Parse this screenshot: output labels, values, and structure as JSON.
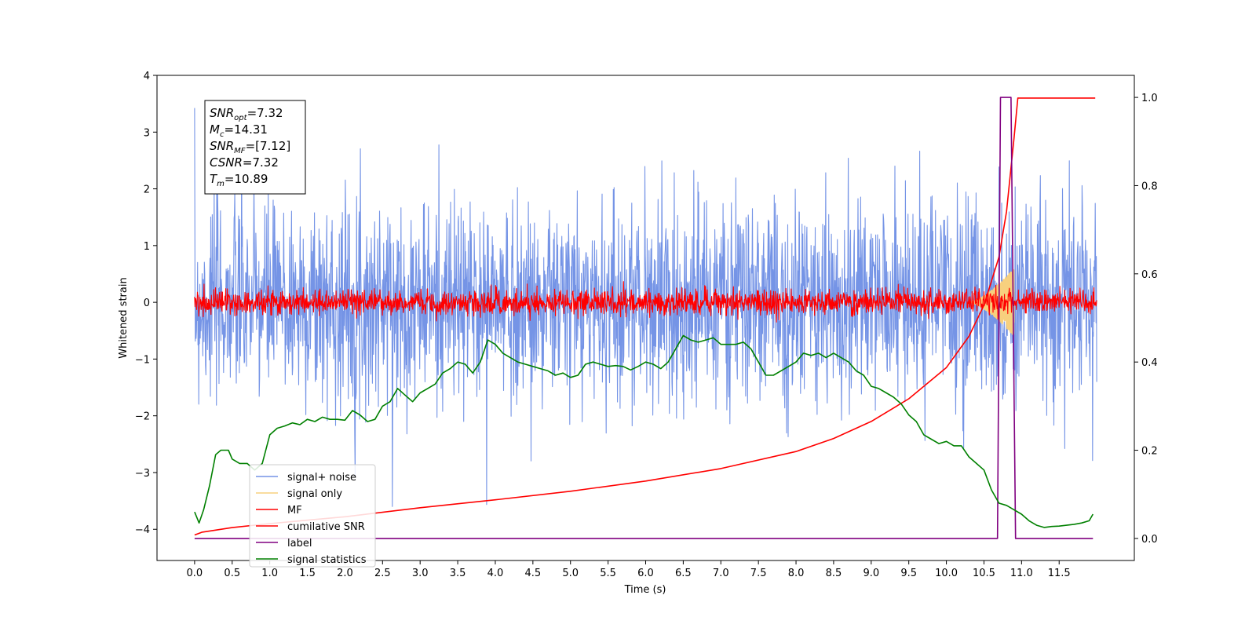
{
  "chart_data": {
    "type": "line",
    "xlabel": "Time (s)",
    "ylabel": "Whitened strain",
    "xlim": [
      -0.5,
      12.5
    ],
    "ylim": [
      -4.55,
      4.0
    ],
    "ylim_right": [
      -0.05,
      1.05
    ],
    "x_ticks": [
      0.0,
      0.5,
      1.0,
      1.5,
      2.0,
      2.5,
      3.0,
      3.5,
      4.0,
      4.5,
      5.0,
      5.5,
      6.0,
      6.5,
      7.0,
      7.5,
      8.0,
      8.5,
      9.0,
      9.5,
      10.0,
      10.5,
      11.0,
      11.5
    ],
    "x_tick_labels": [
      "0.0",
      "0.5",
      "1.0",
      "1.5",
      "2.0",
      "2.5",
      "3.0",
      "3.5",
      "4.0",
      "4.5",
      "5.0",
      "5.5",
      "6.0",
      "6.5",
      "7.0",
      "7.5",
      "8.0",
      "8.5",
      "9.0",
      "9.5",
      "10.0",
      "10.5",
      "11.0",
      "11.5"
    ],
    "y_ticks": [
      -4,
      -3,
      -2,
      -1,
      0,
      1,
      2,
      3,
      4
    ],
    "y_tick_labels": [
      "−4",
      "−3",
      "−2",
      "−1",
      "0",
      "1",
      "2",
      "3",
      "4"
    ],
    "y_right_ticks": [
      0.0,
      0.2,
      0.4,
      0.6,
      0.8,
      1.0
    ],
    "y_right_tick_labels": [
      "0.0",
      "0.2",
      "0.4",
      "0.6",
      "0.8",
      "1.0"
    ],
    "grid": false,
    "legend_position": "lower-left",
    "annotation": [
      {
        "var": "SNR",
        "sub": "opt",
        "value": "=7.32"
      },
      {
        "var": "M",
        "sub": "c",
        "value": "=14.31"
      },
      {
        "var": "SNR",
        "sub": "MF",
        "value": "=[7.12]"
      },
      {
        "var": "CSNR",
        "sub": "",
        "value": "=7.32"
      },
      {
        "var": "T",
        "sub": "m",
        "value": "=10.89"
      }
    ],
    "series": [
      {
        "name": "signal+ noise",
        "color": "#7594e6",
        "kind": "noise",
        "axis": "left",
        "t_start": 0.0,
        "t_end": 12.0,
        "center": 0.0,
        "typical_amplitude": 1.6,
        "max_peak": 3.6
      },
      {
        "name": "signal only",
        "color": "#f7d07e",
        "kind": "chirp",
        "axis": "left",
        "t_start": 10.3,
        "t_end": 10.9,
        "peak_amplitude": 0.6
      },
      {
        "name": "MF",
        "color": "#ff0000",
        "kind": "noise",
        "axis": "left",
        "t_start": 0.0,
        "t_end": 12.0,
        "center": 0.0,
        "typical_amplitude": 0.2,
        "max_peak": 0.55
      },
      {
        "name": "cumilative SNR",
        "color": "#ff0000",
        "kind": "line",
        "axis": "left",
        "x": [
          0.0,
          0.1,
          0.5,
          1.0,
          2.0,
          3.0,
          4.0,
          5.0,
          6.0,
          7.0,
          8.0,
          8.5,
          9.0,
          9.5,
          10.0,
          10.3,
          10.5,
          10.7,
          10.8,
          10.9,
          10.95,
          11.0,
          11.5,
          11.98
        ],
        "y": [
          -4.1,
          -4.05,
          -3.97,
          -3.9,
          -3.78,
          -3.62,
          -3.48,
          -3.33,
          -3.15,
          -2.93,
          -2.63,
          -2.4,
          -2.1,
          -1.7,
          -1.15,
          -0.6,
          -0.05,
          0.8,
          1.6,
          2.9,
          3.6,
          3.6,
          3.6,
          3.6
        ]
      },
      {
        "name": "label",
        "color": "#800080",
        "kind": "line",
        "axis": "right",
        "x": [
          0.0,
          10.68,
          10.72,
          10.86,
          10.92,
          11.95
        ],
        "y": [
          0.0,
          0.0,
          1.0,
          1.0,
          0.0,
          0.0
        ]
      },
      {
        "name": "signal statistics",
        "color": "#008000",
        "kind": "line",
        "axis": "right",
        "x": [
          0.0,
          0.06,
          0.12,
          0.2,
          0.28,
          0.35,
          0.45,
          0.5,
          0.6,
          0.7,
          0.8,
          0.9,
          1.0,
          1.1,
          1.2,
          1.3,
          1.4,
          1.5,
          1.6,
          1.7,
          1.8,
          1.9,
          2.0,
          2.1,
          2.2,
          2.3,
          2.4,
          2.5,
          2.6,
          2.7,
          2.8,
          2.9,
          3.0,
          3.1,
          3.2,
          3.3,
          3.4,
          3.5,
          3.6,
          3.7,
          3.8,
          3.9,
          4.0,
          4.1,
          4.2,
          4.3,
          4.4,
          4.5,
          4.6,
          4.7,
          4.8,
          4.9,
          5.0,
          5.1,
          5.2,
          5.3,
          5.4,
          5.5,
          5.6,
          5.7,
          5.8,
          5.9,
          6.0,
          6.1,
          6.2,
          6.3,
          6.4,
          6.5,
          6.6,
          6.7,
          6.8,
          6.9,
          7.0,
          7.1,
          7.2,
          7.3,
          7.4,
          7.5,
          7.6,
          7.7,
          7.8,
          7.9,
          8.0,
          8.1,
          8.2,
          8.3,
          8.4,
          8.5,
          8.6,
          8.7,
          8.8,
          8.9,
          9.0,
          9.1,
          9.2,
          9.3,
          9.4,
          9.5,
          9.6,
          9.7,
          9.8,
          9.9,
          10.0,
          10.1,
          10.2,
          10.3,
          10.4,
          10.5,
          10.6,
          10.7,
          10.8,
          10.9,
          11.0,
          11.1,
          11.2,
          11.3,
          11.4,
          11.5,
          11.6,
          11.7,
          11.8,
          11.9,
          11.95
        ],
        "y": [
          0.06,
          0.035,
          0.065,
          0.12,
          0.19,
          0.2,
          0.2,
          0.18,
          0.17,
          0.17,
          0.155,
          0.17,
          0.235,
          0.25,
          0.255,
          0.262,
          0.258,
          0.27,
          0.265,
          0.275,
          0.27,
          0.27,
          0.268,
          0.29,
          0.28,
          0.265,
          0.27,
          0.3,
          0.31,
          0.34,
          0.325,
          0.31,
          0.33,
          0.34,
          0.35,
          0.375,
          0.385,
          0.4,
          0.395,
          0.375,
          0.4,
          0.45,
          0.44,
          0.42,
          0.41,
          0.4,
          0.395,
          0.39,
          0.385,
          0.38,
          0.37,
          0.375,
          0.365,
          0.37,
          0.395,
          0.4,
          0.395,
          0.39,
          0.392,
          0.39,
          0.382,
          0.39,
          0.4,
          0.395,
          0.385,
          0.4,
          0.43,
          0.46,
          0.45,
          0.445,
          0.45,
          0.455,
          0.44,
          0.44,
          0.44,
          0.445,
          0.43,
          0.4,
          0.37,
          0.37,
          0.38,
          0.39,
          0.4,
          0.42,
          0.415,
          0.42,
          0.41,
          0.42,
          0.41,
          0.4,
          0.38,
          0.37,
          0.345,
          0.34,
          0.33,
          0.32,
          0.305,
          0.28,
          0.265,
          0.235,
          0.225,
          0.215,
          0.22,
          0.21,
          0.21,
          0.185,
          0.17,
          0.155,
          0.11,
          0.08,
          0.075,
          0.065,
          0.055,
          0.04,
          0.03,
          0.025,
          0.027,
          0.028,
          0.03,
          0.032,
          0.035,
          0.04,
          0.055
        ]
      }
    ]
  }
}
